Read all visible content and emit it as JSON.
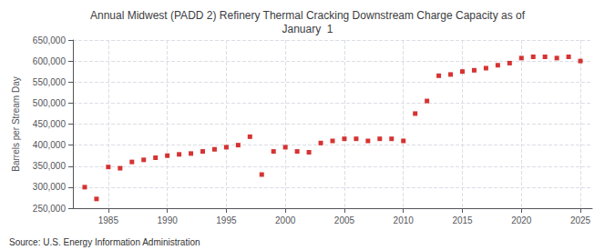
{
  "chart_data": {
    "type": "scatter",
    "title": "Annual Midwest (PADD 2) Refinery Thermal Cracking Downstream Charge Capacity as of\nJanuary  1",
    "ylabel": "Barrels per Stream Day",
    "annotations": [
      "Source: U.S. Energy Information Administration"
    ],
    "x": [
      1983,
      1984,
      1985,
      1986,
      1987,
      1988,
      1989,
      1990,
      1991,
      1992,
      1993,
      1994,
      1995,
      1996,
      1997,
      1998,
      1999,
      2000,
      2001,
      2002,
      2003,
      2004,
      2005,
      2006,
      2007,
      2008,
      2009,
      2010,
      2011,
      2012,
      2013,
      2014,
      2015,
      2016,
      2017,
      2018,
      2019,
      2020,
      2021,
      2022,
      2023,
      2024,
      2025
    ],
    "values": [
      300000,
      272000,
      348000,
      345000,
      360000,
      365000,
      370000,
      375000,
      378000,
      380000,
      385000,
      390000,
      395000,
      400000,
      420000,
      330000,
      385000,
      395000,
      385000,
      383000,
      405000,
      410000,
      415000,
      415000,
      410000,
      415000,
      415000,
      410000,
      475000,
      505000,
      565000,
      568000,
      575000,
      578000,
      583000,
      590000,
      595000,
      607000,
      610000,
      610000,
      607000,
      610000,
      600000
    ],
    "color": "#cc0000",
    "marker": "square",
    "xlim": [
      1982,
      2026
    ],
    "xticks": [
      1985,
      1990,
      1995,
      2000,
      2005,
      2010,
      2015,
      2020,
      2025
    ],
    "ylim": [
      250000,
      650000
    ],
    "yticks": [
      {
        "value": 250000,
        "label": "250,000"
      },
      {
        "value": 300000,
        "label": "300,000"
      },
      {
        "value": 350000,
        "label": "350,000"
      },
      {
        "value": 400000,
        "label": "400,000"
      },
      {
        "value": 450000,
        "label": "450,000"
      },
      {
        "value": 500000,
        "label": "500,000"
      },
      {
        "value": 550000,
        "label": "550,000"
      },
      {
        "value": 600000,
        "label": "600,000"
      },
      {
        "value": 650000,
        "label": "650,000"
      }
    ],
    "grid": true
  }
}
